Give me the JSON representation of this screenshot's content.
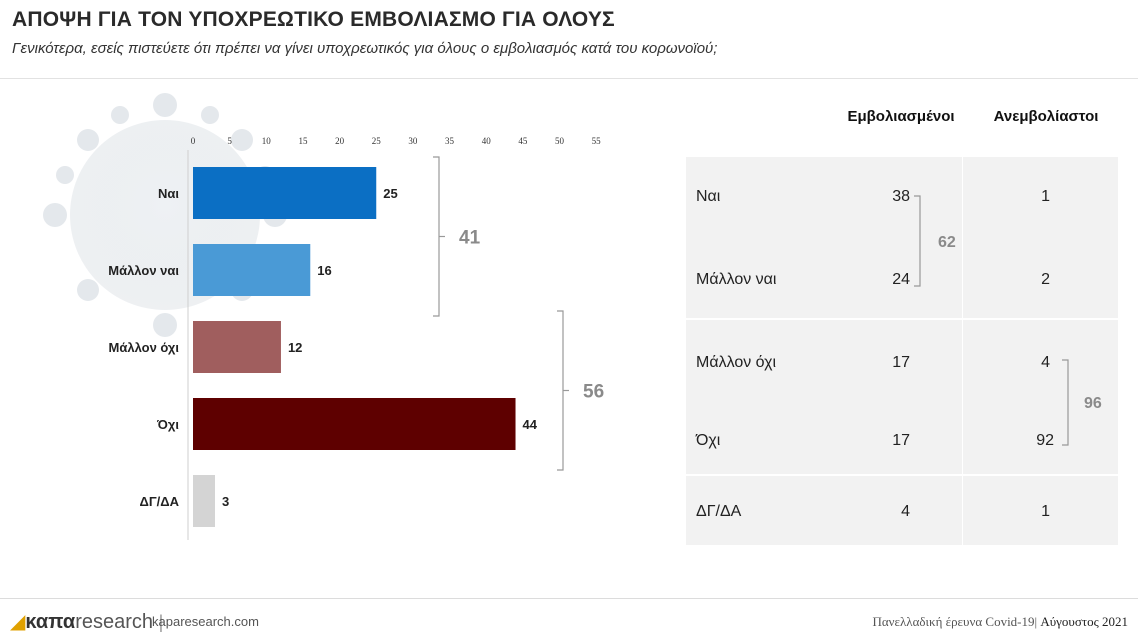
{
  "header": {
    "title": "ΑΠΟΨΗ ΓΙΑ ΤΟΝ ΥΠΟΧΡΕΩΤΙΚΟ ΕΜΒΟΛΙΑΣΜΟ ΓΙΑ ΟΛΟΥΣ",
    "subtitle": "Γενικότερα, εσείς πιστεύετε ότι πρέπει να γίνει υποχρεωτικός για όλους ο εμβολιασμός κατά του κορωνοϊού;"
  },
  "chart_data": {
    "type": "bar",
    "orientation": "horizontal",
    "categories": [
      "Ναι",
      "Μάλλον ναι",
      "Μάλλον όχι",
      "Όχι",
      "ΔΓ/ΔΑ"
    ],
    "values": [
      25,
      16,
      12,
      44,
      3
    ],
    "colors": [
      "#0b6fc4",
      "#4a9ad6",
      "#a05e5e",
      "#5e0000",
      "#d4d4d4"
    ],
    "xlim": [
      0,
      55
    ],
    "xticks": [
      "0",
      "5",
      "10",
      "15",
      "20",
      "25",
      "30",
      "35",
      "40",
      "45",
      "50",
      "55"
    ],
    "grid": false,
    "groups": [
      {
        "label": "41",
        "from": 0,
        "to": 1
      },
      {
        "label": "56",
        "from": 2,
        "to": 3
      }
    ]
  },
  "table": {
    "headers": [
      "Εμβολιασμένοι",
      "Ανεμβολίαστοι"
    ],
    "rows": [
      {
        "label": "Ναι",
        "vaccinated": "38",
        "unvaccinated": "1"
      },
      {
        "label": "Μάλλον ναι",
        "vaccinated": "24",
        "unvaccinated": "2"
      },
      {
        "label": "Μάλλον όχι",
        "vaccinated": "17",
        "unvaccinated": "4"
      },
      {
        "label": "Όχι",
        "vaccinated": "17",
        "unvaccinated": "92"
      },
      {
        "label": "ΔΓ/ΔΑ",
        "vaccinated": "4",
        "unvaccinated": "1"
      }
    ],
    "group_vaccinated": "62",
    "group_unvaccinated": "96"
  },
  "footer": {
    "logo_bold": "καπα",
    "logo_light": "research",
    "site": "kaparesearch.com",
    "source": "Πανελλαδική έρευνα Covid-19|",
    "date": " Αύγουστος 2021"
  }
}
